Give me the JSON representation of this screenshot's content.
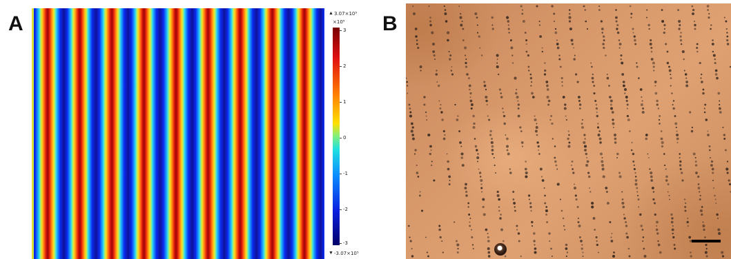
{
  "panels": {
    "a": {
      "label": "A",
      "colorbar": {
        "max_label": "3.07×10⁵",
        "multiplier": "×10⁵",
        "ticks": [
          "3",
          "2",
          "1",
          "0",
          "-1",
          "-2",
          "-3"
        ],
        "min_label": "-3.07×10⁵",
        "colormap": "jet"
      }
    },
    "b": {
      "label": "B"
    }
  }
}
